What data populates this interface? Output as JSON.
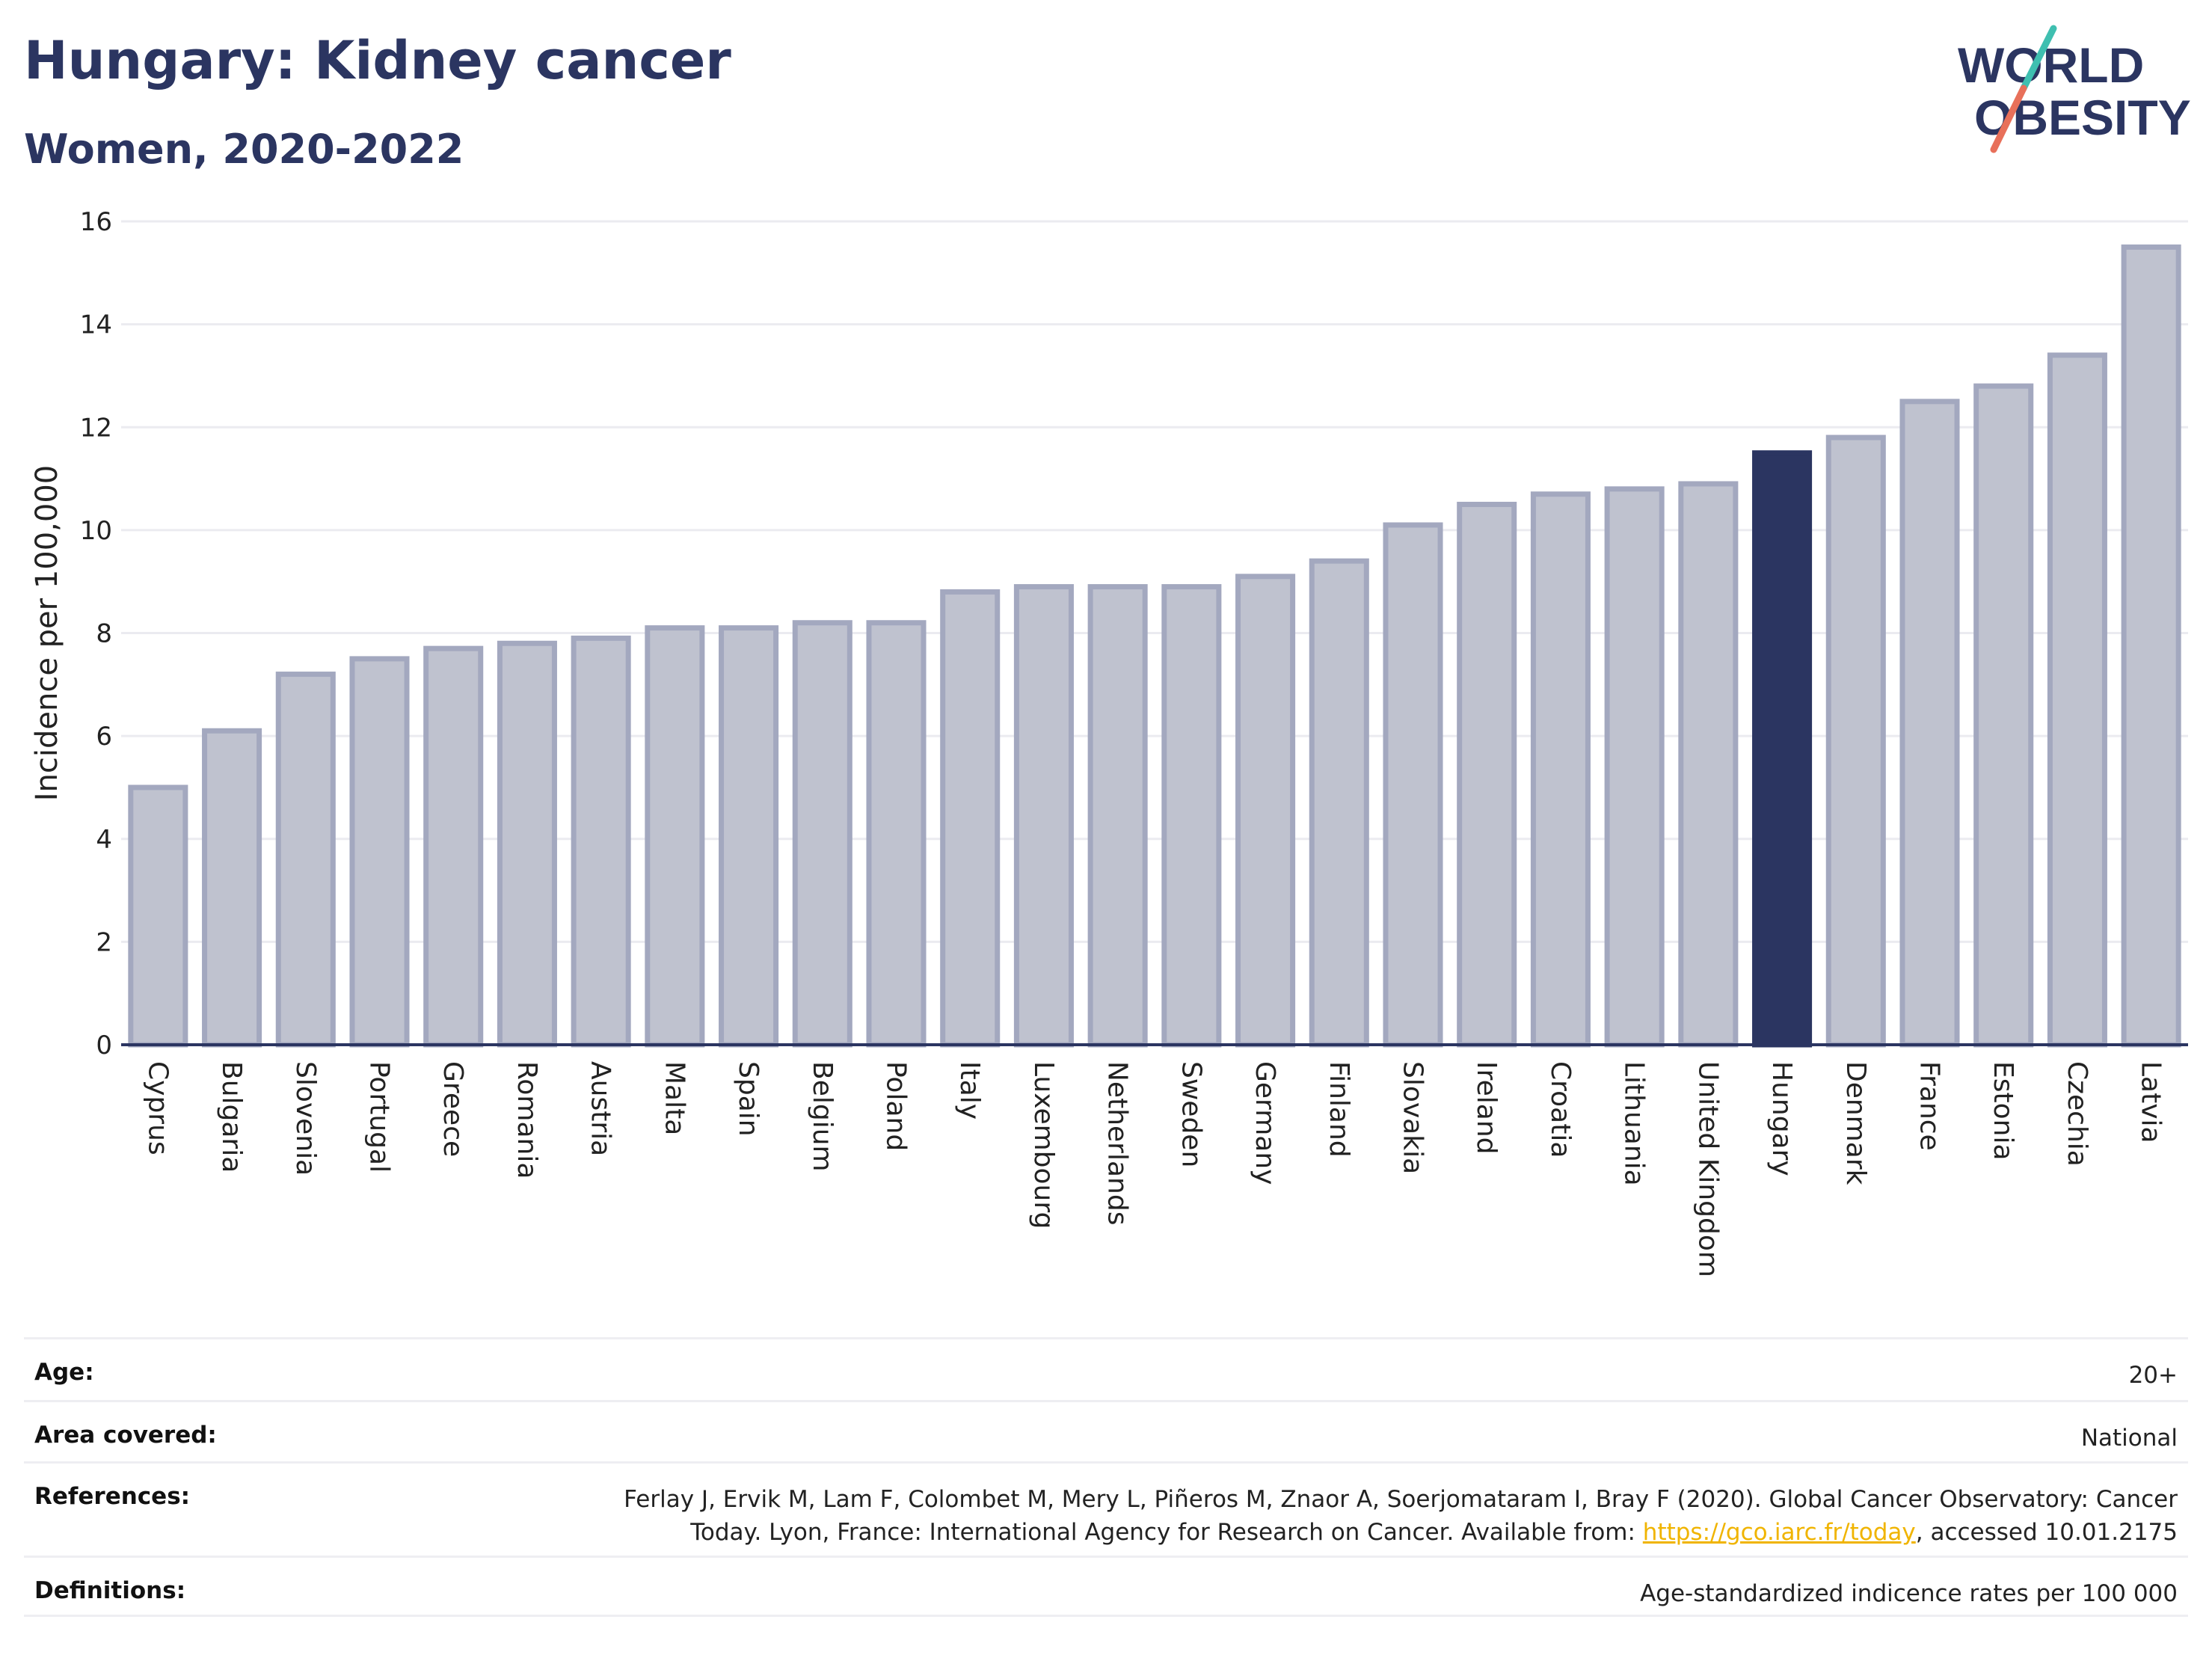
{
  "title": "Hungary: Kidney cancer",
  "subtitle": "Women, 2020-2022",
  "logo": {
    "line1": "WORLD",
    "line2": "OBESITY",
    "text_color": "#2b3561",
    "slash_top": "#3fbfb0",
    "slash_bottom": "#e8705a"
  },
  "chart_data": {
    "type": "bar",
    "ylabel": "Incidence per 100,000",
    "xlabel": "",
    "ylim": [
      0,
      16
    ],
    "yticks": [
      0,
      2,
      4,
      6,
      8,
      10,
      12,
      14,
      16
    ],
    "grid": true,
    "highlight": "Hungary",
    "colors": {
      "bar": "#bfc2cf",
      "bar_edge": "#a3a8bf",
      "highlight": "#2b3561",
      "grid": "#ebebf0",
      "axis": "#2b3561"
    },
    "categories": [
      "Cyprus",
      "Bulgaria",
      "Slovenia",
      "Portugal",
      "Greece",
      "Romania",
      "Austria",
      "Malta",
      "Spain",
      "Belgium",
      "Poland",
      "Italy",
      "Luxembourg",
      "Netherlands",
      "Sweden",
      "Germany",
      "Finland",
      "Slovakia",
      "Ireland",
      "Croatia",
      "Lithuania",
      "United Kingdom",
      "Hungary",
      "Denmark",
      "France",
      "Estonia",
      "Czechia",
      "Latvia"
    ],
    "values": [
      5.0,
      6.1,
      7.2,
      7.5,
      7.7,
      7.8,
      7.9,
      8.1,
      8.1,
      8.2,
      8.2,
      8.8,
      8.9,
      8.9,
      8.9,
      9.1,
      9.4,
      10.1,
      10.5,
      10.7,
      10.8,
      10.9,
      11.5,
      11.8,
      12.5,
      12.8,
      13.4,
      15.5
    ]
  },
  "meta": {
    "age_label": "Age:",
    "age_value": "20+",
    "area_label": "Area covered:",
    "area_value": "National",
    "references_label": "References:",
    "references_line1": "Ferlay J, Ervik M, Lam F, Colombet M, Mery L, Piñeros M, Znaor A, Soerjomataram I, Bray F (2020). Global Cancer Observatory: Cancer",
    "references_line2_pre": "Today. Lyon, France: International Agency for Research on Cancer. Available from: ",
    "references_link": "https://gco.iarc.fr/today",
    "references_line2_post": ", accessed 10.01.2175",
    "definitions_label": "Definitions:",
    "definitions_value": "Age-standardized indicence rates per 100 000"
  }
}
